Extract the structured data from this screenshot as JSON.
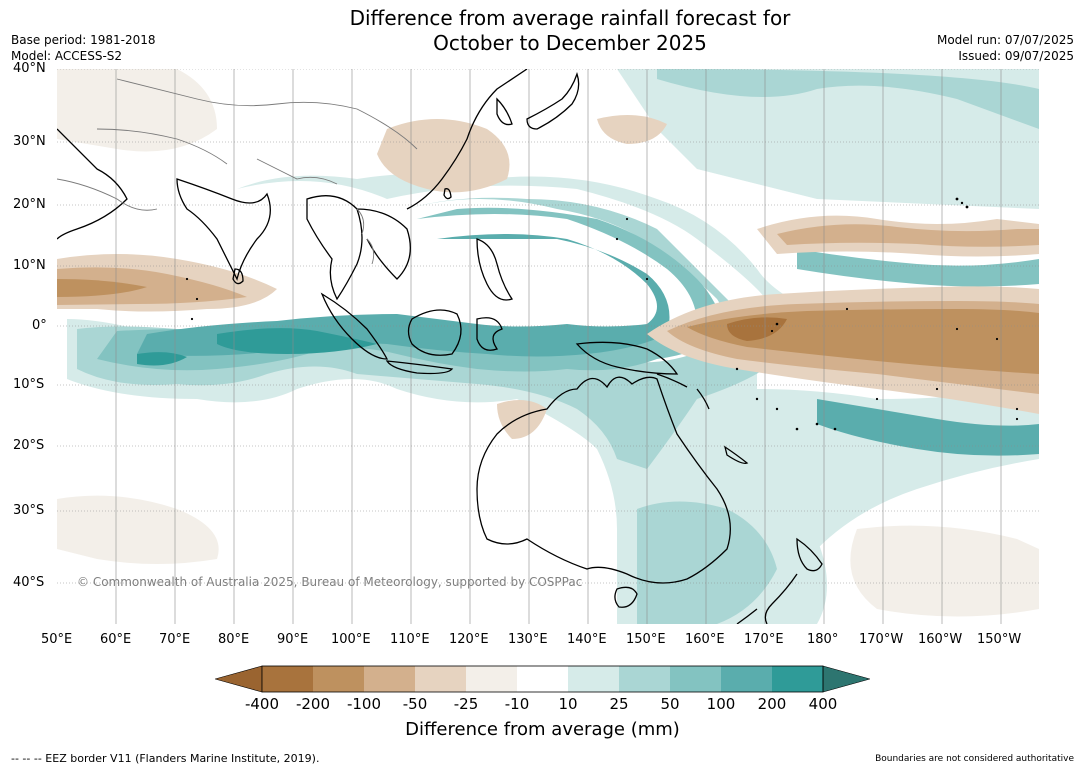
{
  "header": {
    "title_line1": "Difference from average rainfall forecast for",
    "title_line2": "October to December 2025",
    "base_period": "Base period: 1981-2018",
    "model": "Model: ACCESS-S2",
    "model_run": "Model run: 07/07/2025",
    "issued": "Issued: 09/07/2025"
  },
  "map": {
    "lat_labels": [
      "40°N",
      "30°N",
      "20°N",
      "10°N",
      "0°",
      "10°S",
      "20°S",
      "30°S",
      "40°S"
    ],
    "lon_labels": [
      "50°E",
      "60°E",
      "70°E",
      "80°E",
      "90°E",
      "100°E",
      "110°E",
      "120°E",
      "130°E",
      "140°E",
      "150°E",
      "160°E",
      "170°E",
      "180°",
      "170°W",
      "160°W",
      "150°W"
    ],
    "copyright": "© Commonwealth of Australia 2025, Bureau of Meteorology, supported by COSPPac",
    "land_color": "#000000"
  },
  "legend": {
    "title": "Difference from average (mm)",
    "labels": [
      "-400",
      "-200",
      "-100",
      "-50",
      "-25",
      "-10",
      "10",
      "25",
      "50",
      "100",
      "200",
      "400"
    ],
    "colors": {
      "below_400": "#9a6430",
      "m400_m200": "#a8733d",
      "m200_m100": "#be915f",
      "m100_m50": "#d3b08d",
      "m50_m25": "#e6d3c0",
      "m25_m10": "#f3efe9",
      "m10_10": "#ffffff",
      "p10_25": "#d6ebe9",
      "p25_50": "#aad6d4",
      "p50_100": "#83c3c1",
      "p100_200": "#5aadad",
      "p200_400": "#2f9b98",
      "above_400": "#2d7570"
    }
  },
  "footer": {
    "eez": "--  --  -- EEZ border V11 (Flanders Marine Institute, 2019).",
    "boundaries": "Boundaries are not considered authoritative"
  }
}
